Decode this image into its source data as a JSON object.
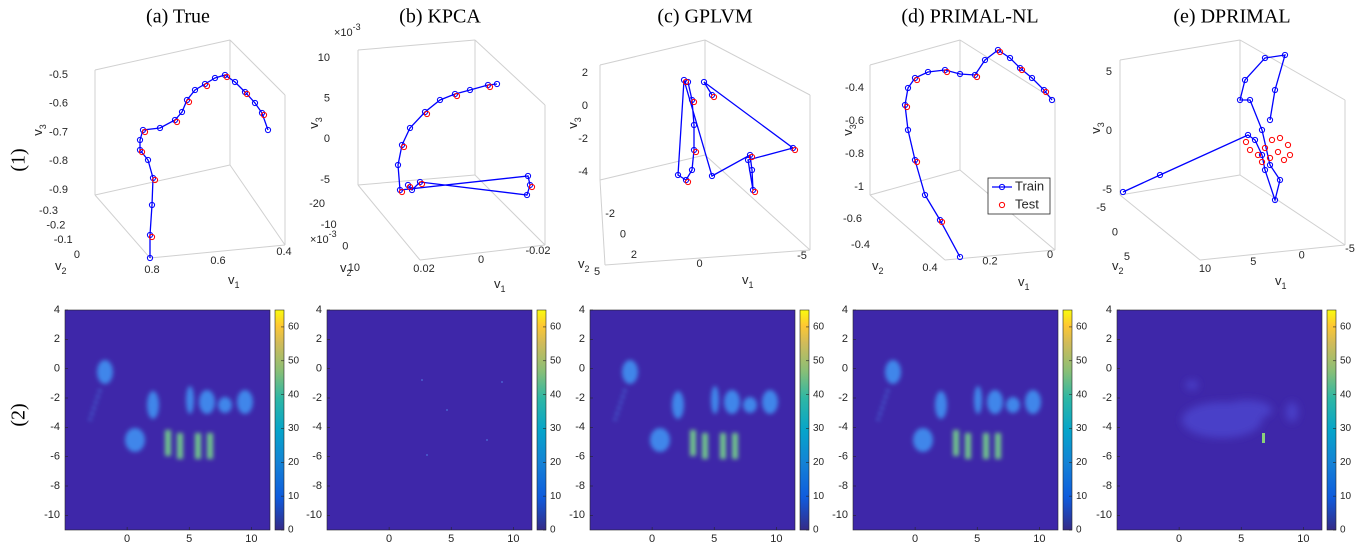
{
  "titles": [
    "(a) True",
    "(b) KPCA",
    "(c) GPLVM",
    "(d) PRIMAL-NL",
    "(e) DPRIMAL"
  ],
  "row_labels": [
    "(1)",
    "(2)"
  ],
  "panels_3d": [
    {
      "z_ticks": [
        -0.5,
        -0.6,
        -0.7,
        -0.8,
        -0.9
      ],
      "y_ticks": [
        -0.3,
        -0.2,
        -0.1,
        0
      ],
      "x_ticks": [
        0.8,
        0.6,
        0.4
      ],
      "z_label": {
        "base": "v",
        "sub": "3"
      },
      "y_label": {
        "base": "v",
        "sub": "2"
      },
      "x_label": {
        "base": "v",
        "sub": "1"
      }
    },
    {
      "z_ticks": [
        10,
        5,
        0,
        -5
      ],
      "y_ticks": [
        -20,
        -10,
        0,
        10
      ],
      "x_ticks": [
        0.02,
        0,
        -0.02
      ],
      "z_label": {
        "base": "v",
        "sub": "3"
      },
      "y_label": {
        "base": "v",
        "sub": "2"
      },
      "x_label": {
        "base": "v",
        "sub": "1"
      },
      "exponents": [
        {
          "base": "×10",
          "sup": "-3"
        },
        {
          "base": "×10",
          "sup": "-3"
        }
      ]
    },
    {
      "z_ticks": [
        2,
        0,
        -2,
        -4
      ],
      "y_ticks": [
        -2,
        0,
        2
      ],
      "x_ticks": [
        5,
        0,
        -5
      ],
      "z_label": {
        "base": "v",
        "sub": "3"
      },
      "y_label": {
        "base": "v",
        "sub": "2"
      },
      "x_label": {
        "base": "v",
        "sub": "1"
      }
    },
    {
      "z_ticks": [
        -0.4,
        -0.6,
        -0.8,
        -1
      ],
      "y_ticks": [
        -0.6,
        -0.4
      ],
      "x_ticks": [
        0.4,
        0.2,
        0
      ],
      "z_label": {
        "base": "v",
        "sub": "3"
      },
      "y_label": {
        "base": "v",
        "sub": "2"
      },
      "x_label": {
        "base": "v",
        "sub": "1"
      },
      "legend": [
        "Train",
        "Test"
      ]
    },
    {
      "z_ticks": [
        5,
        0,
        -5
      ],
      "y_ticks": [
        -5,
        0,
        5
      ],
      "x_ticks": [
        10,
        5,
        0,
        -5
      ],
      "z_label": {
        "base": "v",
        "sub": "3"
      },
      "y_label": {
        "base": "v",
        "sub": "2"
      },
      "x_label": {
        "base": "v",
        "sub": "1"
      }
    }
  ],
  "heatmaps": {
    "xlim": [
      -5,
      11.5
    ],
    "ylim": [
      -11,
      4
    ],
    "clim": [
      0,
      65
    ],
    "xticks": [
      0,
      5,
      10
    ],
    "yticks": [
      4,
      2,
      0,
      -2,
      -4,
      -6,
      -8,
      -10
    ],
    "colorbar_ticks": [
      0,
      10,
      20,
      30,
      40,
      50,
      60
    ]
  }
}
